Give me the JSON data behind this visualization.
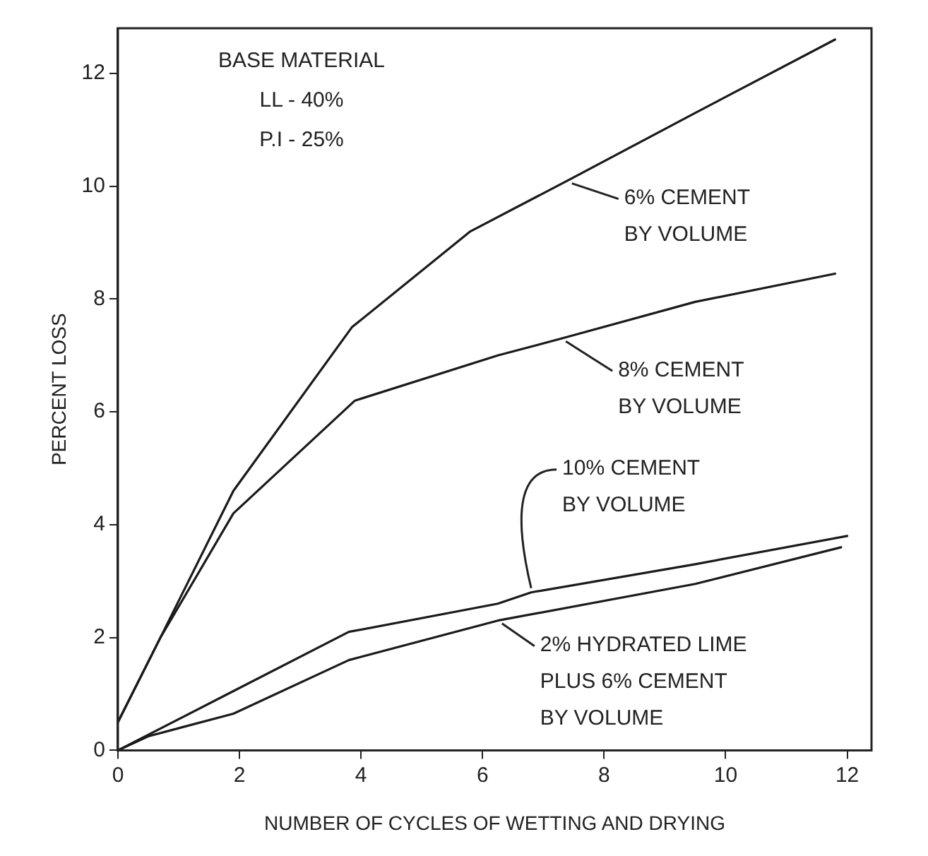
{
  "chart_data": {
    "type": "line",
    "xlabel": "NUMBER OF CYCLES OF WETTING AND DRYING",
    "ylabel": "PERCENT LOSS",
    "xlim": [
      0,
      12.4
    ],
    "ylim": [
      0,
      12.8
    ],
    "xticks": [
      0,
      2,
      4,
      6,
      8,
      10,
      12
    ],
    "yticks": [
      0,
      2,
      4,
      6,
      8,
      10,
      12
    ],
    "grid": false,
    "legend": false,
    "marker": "none",
    "line_style": "solid",
    "series": [
      {
        "color": "#1a1a1a",
        "x": [
          0,
          0.7,
          1.9,
          3.85,
          5.8,
          7.4,
          9.5,
          11.8
        ],
        "values": [
          0.5,
          2.0,
          4.6,
          7.5,
          9.2,
          10.1,
          11.3,
          12.6
        ]
      },
      {
        "color": "#1a1a1a",
        "x": [
          0,
          0.7,
          1.9,
          3.9,
          6.25,
          7.3,
          9.5,
          11.8
        ],
        "values": [
          0.5,
          2.0,
          4.2,
          6.2,
          7.0,
          7.3,
          7.95,
          8.45
        ]
      },
      {
        "color": "#1a1a1a",
        "x": [
          0,
          1.9,
          3.8,
          6.25,
          6.8,
          9.5,
          12
        ],
        "values": [
          0,
          1.05,
          2.1,
          2.6,
          2.8,
          3.3,
          3.8
        ]
      },
      {
        "color": "#1a1a1a",
        "x": [
          0,
          0.5,
          1.9,
          3.8,
          6.25,
          9.5,
          11.9
        ],
        "values": [
          0,
          0.25,
          0.65,
          1.6,
          2.3,
          2.95,
          3.6
        ]
      }
    ],
    "annotations": [
      "BASE MATERIAL\nLL - 40%\nP.I - 25%",
      {
        "text": "6% CEMENT\nBY VOLUME",
        "x": 7.4,
        "y": 10.1
      },
      {
        "text": "8% CEMENT\nBY VOLUME",
        "x": 7.3,
        "y": 7.3
      },
      {
        "text": "10% CEMENT\nBY VOLUME",
        "x": 6.8,
        "y": 2.8
      },
      {
        "text": "2% HYDRATED LIME\nPLUS 6% CEMENT\nBY VOLUME",
        "x": 6.25,
        "y": 2.3
      }
    ]
  }
}
